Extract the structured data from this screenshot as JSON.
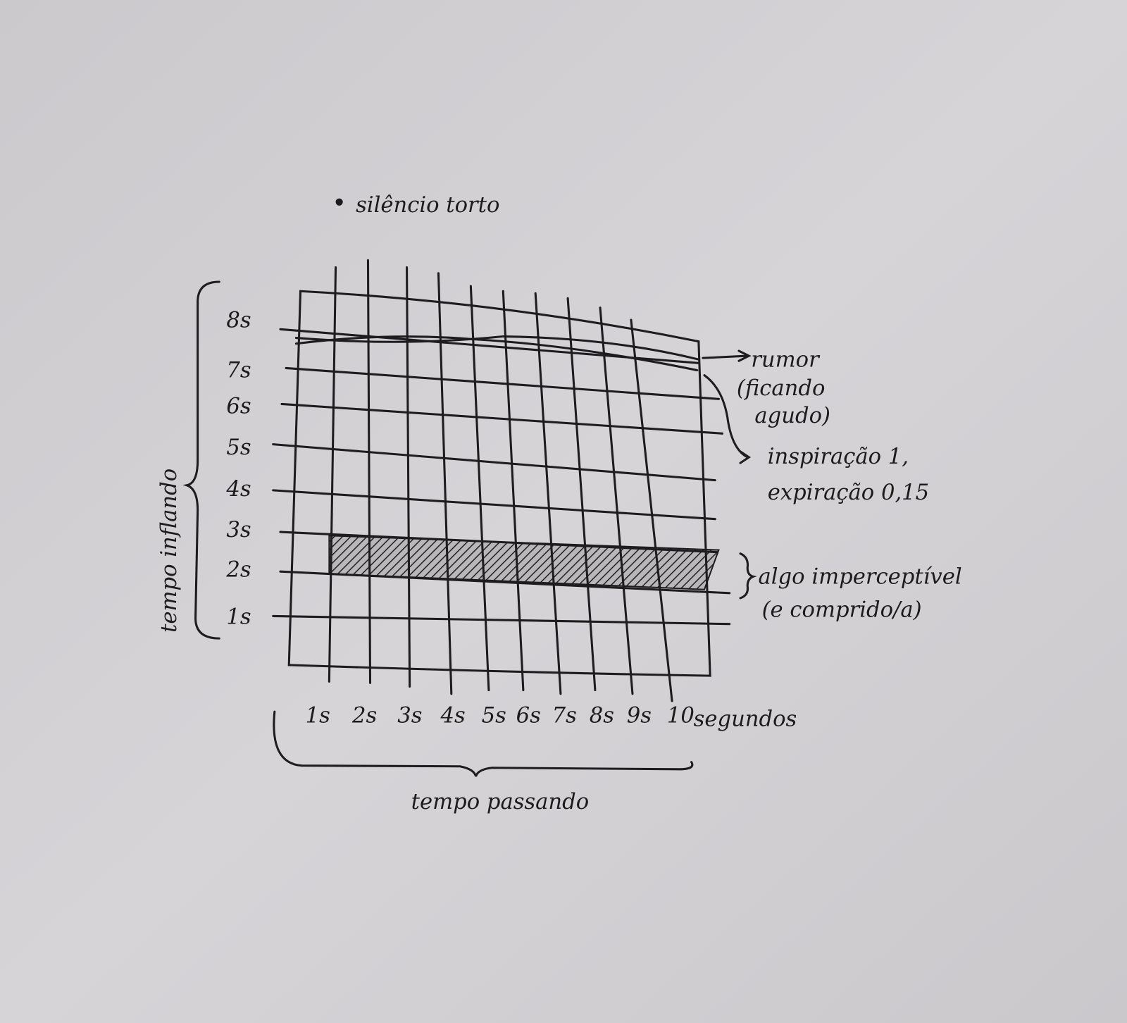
{
  "title": "silêncio torto",
  "y_axis": {
    "label": "tempo inflando",
    "ticks": [
      "8s",
      "7s",
      "6s",
      "5s",
      "4s",
      "3s",
      "2s",
      "1s"
    ]
  },
  "x_axis": {
    "label": "tempo passando",
    "ticks": [
      "1s",
      "2s",
      "3s",
      "4s",
      "5s",
      "6s",
      "7s",
      "8s",
      "9s",
      "10"
    ],
    "unit": "segundos"
  },
  "annotations": [
    {
      "lines": [
        "rumor",
        "(ficando",
        "agudo)"
      ]
    },
    {
      "lines": [
        "inspiração 1,",
        "expiração 0,15"
      ]
    },
    {
      "lines": [
        "algo imperceptível",
        "(e comprido/a)"
      ]
    }
  ]
}
